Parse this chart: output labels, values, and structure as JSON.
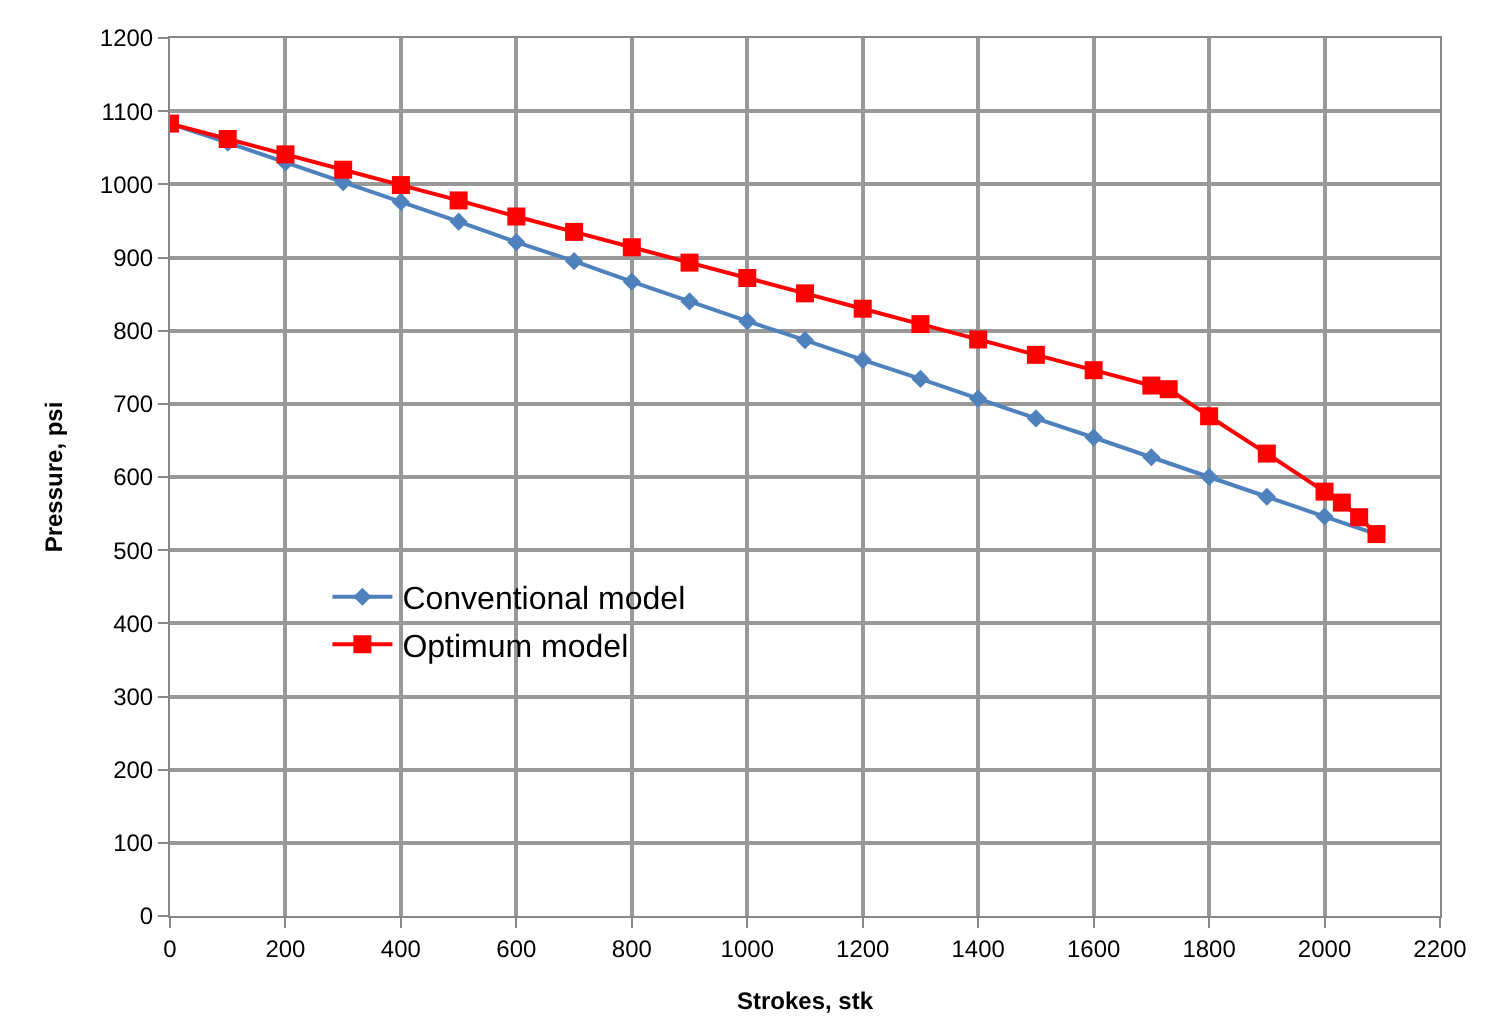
{
  "chart_data": {
    "type": "line",
    "xlabel": "Strokes, stk",
    "ylabel": "Pressure, psi",
    "xlim": [
      0,
      2200
    ],
    "xticks": [
      0,
      200,
      400,
      600,
      800,
      1000,
      1200,
      1400,
      1600,
      1800,
      2000,
      2200
    ],
    "ylim": [
      0,
      1200
    ],
    "yticks": [
      0,
      100,
      200,
      300,
      400,
      500,
      600,
      700,
      800,
      900,
      1000,
      1100,
      1200
    ],
    "grid": true,
    "legend": "bottom left",
    "line_style": "solid",
    "series": [
      {
        "name": "Conventional model",
        "color": "#4f81bd",
        "marker": "diamond",
        "x": [
          0,
          100,
          200,
          300,
          400,
          500,
          600,
          700,
          800,
          900,
          1000,
          1100,
          1200,
          1300,
          1400,
          1500,
          1600,
          1700,
          1800,
          1900,
          2000,
          2090
        ],
        "values": [
          1083,
          1057,
          1030,
          1003,
          976,
          949,
          921,
          895,
          867,
          840,
          813,
          787,
          760,
          734,
          707,
          680,
          654,
          627,
          600,
          573,
          546,
          522
        ]
      },
      {
        "name": "Optimum model",
        "color": "#ff0000",
        "marker": "square",
        "x": [
          0,
          100,
          200,
          300,
          400,
          500,
          600,
          700,
          800,
          900,
          1000,
          1100,
          1200,
          1300,
          1400,
          1500,
          1600,
          1700,
          1730,
          1800,
          1900,
          2000,
          2030,
          2060,
          2090
        ],
        "values": [
          1083,
          1062,
          1041,
          1020,
          999,
          978,
          956,
          935,
          914,
          893,
          872,
          851,
          830,
          809,
          788,
          767,
          746,
          725,
          720,
          683,
          632,
          580,
          565,
          545,
          522
        ]
      }
    ]
  }
}
